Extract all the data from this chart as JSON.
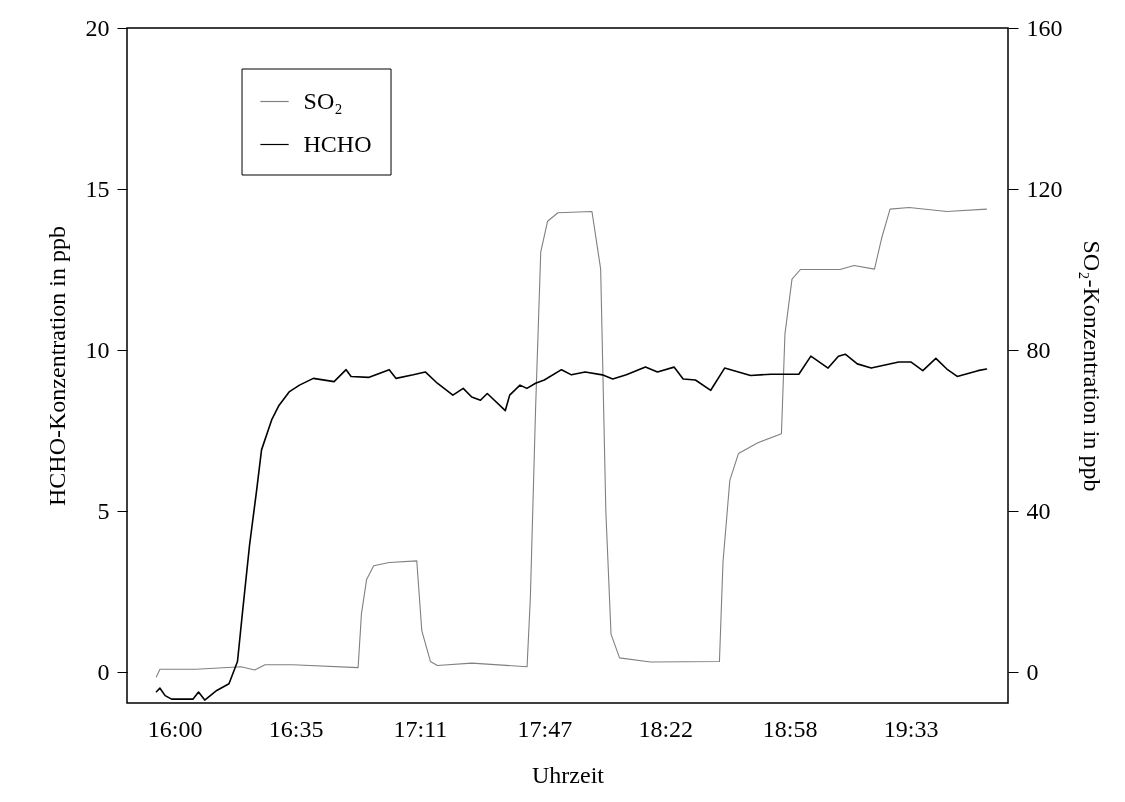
{
  "chart_data": {
    "type": "line",
    "xlabel": "Uhrzeit",
    "ylabel": "HCHO-Konzentration in ppb",
    "y2label": "SO₂-Konzentration in ppb",
    "xlim": [
      15.77,
      20.02
    ],
    "xticks": [
      {
        "value": 16,
        "label": "16:00"
      },
      {
        "value": 16.5833,
        "label": "16:35"
      },
      {
        "value": 17.1833,
        "label": "17:11"
      },
      {
        "value": 17.7833,
        "label": "17:47"
      },
      {
        "value": 18.3667,
        "label": "18:22"
      },
      {
        "value": 18.9667,
        "label": "18:58"
      },
      {
        "value": 19.55,
        "label": "19:33"
      }
    ],
    "ylim": [
      -0.96,
      20
    ],
    "yticks": [
      0,
      5,
      10,
      15,
      20
    ],
    "y2lim": [
      -7.7,
      160
    ],
    "y2ticks": [
      0,
      40,
      80,
      120,
      160
    ],
    "legend": "top left",
    "grid": false,
    "line_style": "solid",
    "marker": "none",
    "series": [
      {
        "name": "SO₂",
        "color": "#808080",
        "axis": "y2",
        "x": [
          15.912,
          15.929,
          16.104,
          16.32,
          16.386,
          16.436,
          16.569,
          16.885,
          16.901,
          16.926,
          16.96,
          17.035,
          17.168,
          17.192,
          17.234,
          17.267,
          17.433,
          17.7,
          17.716,
          17.741,
          17.766,
          17.799,
          17.849,
          18.013,
          18.055,
          18.08,
          18.105,
          18.146,
          18.296,
          18.628,
          18.645,
          18.678,
          18.72,
          18.811,
          18.927,
          18.944,
          18.978,
          19.019,
          19.21,
          19.277,
          19.376,
          19.41,
          19.451,
          19.543,
          19.725,
          19.916
        ],
        "values": [
          -1.2,
          0.7,
          0.7,
          1.3,
          0.5,
          1.8,
          1.8,
          1.1,
          14.5,
          23,
          26.4,
          27.2,
          27.6,
          10.3,
          2.6,
          1.6,
          2.2,
          1.3,
          18.7,
          65.4,
          104.4,
          112,
          114.1,
          114.4,
          100.1,
          39.9,
          9.4,
          3.5,
          2.5,
          2.6,
          27.2,
          47.6,
          54.3,
          56.9,
          59.2,
          84,
          97.6,
          100,
          100,
          101,
          100.1,
          107.7,
          115,
          115.4,
          114.4,
          115
        ]
      },
      {
        "name": "HCHO",
        "color": "#000000",
        "axis": "y",
        "x": [
          15.912,
          15.929,
          15.954,
          15.985,
          16.088,
          16.115,
          16.145,
          16.203,
          16.262,
          16.303,
          16.328,
          16.361,
          16.395,
          16.419,
          16.469,
          16.503,
          16.552,
          16.602,
          16.669,
          16.769,
          16.827,
          16.851,
          16.935,
          17.035,
          17.068,
          17.151,
          17.209,
          17.267,
          17.342,
          17.392,
          17.433,
          17.475,
          17.508,
          17.595,
          17.616,
          17.666,
          17.699,
          17.741,
          17.783,
          17.866,
          17.914,
          17.98,
          18.063,
          18.113,
          18.179,
          18.271,
          18.329,
          18.409,
          18.453,
          18.512,
          18.586,
          18.653,
          18.778,
          18.878,
          19.011,
          19.069,
          19.152,
          19.202,
          19.235,
          19.293,
          19.36,
          19.493,
          19.551,
          19.609,
          19.672,
          19.725,
          19.775,
          19.875,
          19.916
        ],
        "values": [
          -0.61,
          -0.5,
          -0.73,
          -0.84,
          -0.84,
          -0.62,
          -0.87,
          -0.57,
          -0.36,
          0.33,
          1.91,
          3.93,
          5.63,
          6.9,
          7.85,
          8.28,
          8.7,
          8.91,
          9.12,
          9.02,
          9.39,
          9.18,
          9.15,
          9.39,
          9.12,
          9.23,
          9.32,
          8.97,
          8.6,
          8.81,
          8.54,
          8.44,
          8.65,
          8.12,
          8.6,
          8.91,
          8.81,
          8.97,
          9.07,
          9.39,
          9.23,
          9.32,
          9.23,
          9.1,
          9.23,
          9.47,
          9.32,
          9.47,
          9.1,
          9.07,
          8.75,
          9.44,
          9.21,
          9.25,
          9.25,
          9.81,
          9.44,
          9.81,
          9.87,
          9.57,
          9.44,
          9.63,
          9.63,
          9.36,
          9.74,
          9.41,
          9.18,
          9.36,
          9.41
        ]
      }
    ]
  }
}
